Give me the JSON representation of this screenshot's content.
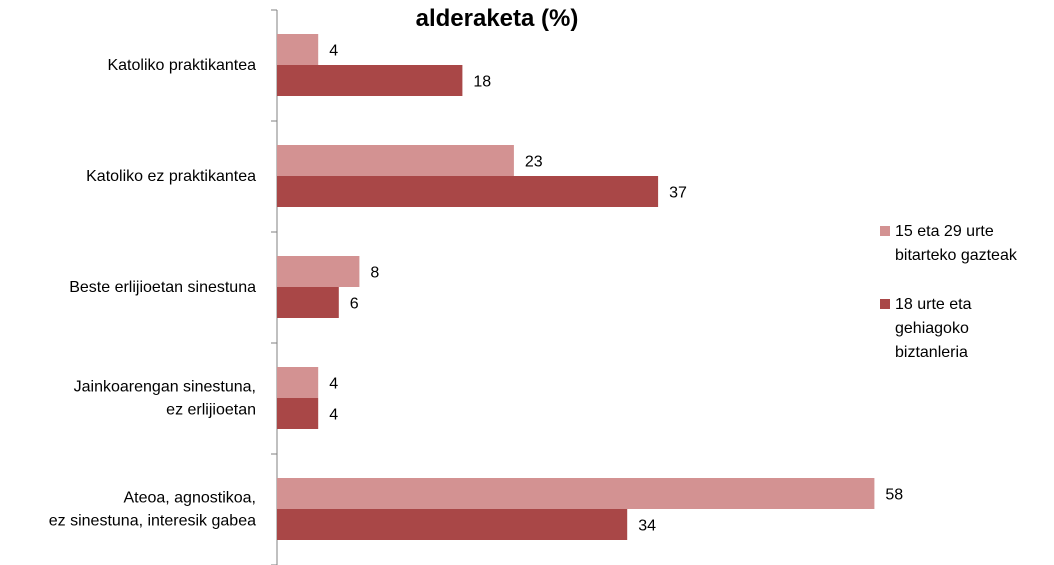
{
  "chart_data": {
    "type": "bar",
    "orientation": "horizontal",
    "title": "alderaketa (%)",
    "categories": [
      "Katoliko praktikantea",
      "Katoliko ez praktikantea",
      "Beste erlijioetan sinestuna",
      "Jainkoarengan sinestuna,\nez erlijioetan",
      "Ateoa, agnostikoa,\nez sinestuna, interesik gabea"
    ],
    "series": [
      {
        "name": "15 eta 29 urte bitarteko gazteak",
        "legend_lines": [
          "15 eta 29 urte",
          "bitarteko gazteak"
        ],
        "color": "#D39292",
        "values": [
          4,
          23,
          8,
          4,
          58
        ]
      },
      {
        "name": "18 urte eta gehiagoko biztanleria",
        "legend_lines": [
          "18 urte eta",
          "gehiagoko",
          "biztanleria"
        ],
        "color": "#A94747",
        "values": [
          18,
          37,
          6,
          4,
          34
        ]
      }
    ],
    "xlim": [
      0,
      60
    ],
    "grid": false,
    "legend_position": "right"
  }
}
